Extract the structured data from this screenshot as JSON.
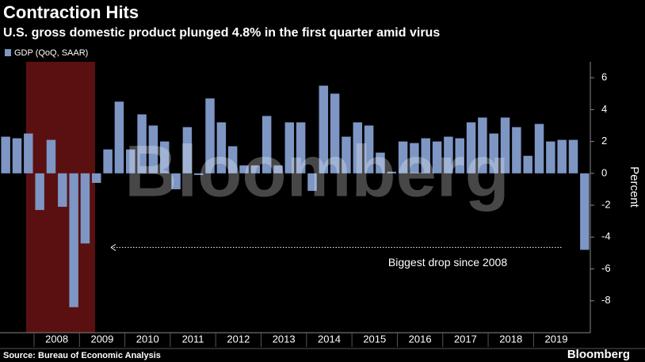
{
  "chart_data": {
    "type": "bar",
    "title": "Contraction Hits",
    "subtitle": "U.S. gross domestic product plunged 4.8% in the first quarter amid virus",
    "series": [
      {
        "name": "GDP (QoQ, SAAR)",
        "color": "#7d96c4",
        "values": [
          2.3,
          2.2,
          2.5,
          -2.3,
          2.1,
          -2.1,
          -8.4,
          -4.4,
          -0.6,
          1.5,
          4.5,
          1.5,
          3.7,
          3.0,
          2.0,
          -1.0,
          2.9,
          -0.1,
          4.7,
          3.2,
          1.7,
          0.5,
          0.5,
          3.6,
          0.5,
          3.2,
          3.2,
          -1.1,
          5.5,
          5.0,
          2.3,
          3.2,
          3.0,
          1.3,
          0.1,
          2.0,
          1.9,
          2.2,
          2.0,
          2.3,
          2.2,
          3.2,
          3.5,
          2.5,
          3.5,
          2.9,
          1.1,
          3.1,
          2.0,
          2.1,
          2.1,
          -4.8
        ]
      }
    ],
    "categories": [
      null,
      null,
      null,
      null,
      null,
      null,
      null,
      null,
      null,
      null,
      null,
      null,
      null,
      null,
      null,
      null,
      null,
      null,
      null,
      null,
      null,
      null,
      null,
      null,
      null,
      null,
      null,
      null,
      null,
      null,
      null,
      null,
      null,
      null,
      null,
      null,
      null,
      null,
      null,
      null,
      null,
      null,
      null,
      null,
      null,
      null,
      null,
      null,
      null,
      null,
      null,
      null
    ],
    "year_labels": [
      "2008",
      "2009",
      "2010",
      "2011",
      "2012",
      "2013",
      "2014",
      "2015",
      "2016",
      "2017",
      "2018",
      "2019"
    ],
    "ylim": [
      -10,
      7
    ],
    "yticks": [
      -8,
      -6,
      -4,
      -2,
      0,
      2,
      4,
      6
    ],
    "y_label": "Percent",
    "grid": false,
    "annotation": "Biggest drop since 2008",
    "watermark": "Bloomberg",
    "source": "Source: Bureau of Economic Analysis",
    "brand": "Bloomberg"
  }
}
